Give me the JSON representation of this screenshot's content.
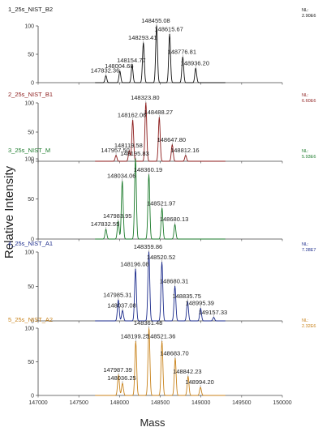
{
  "figure": {
    "ylabel": "Relative Intensity",
    "xlabel": "Mass"
  },
  "chart_data": {
    "type": "line",
    "xlim": [
      147000,
      150000
    ],
    "x_ticks": [
      "147000",
      "147500",
      "148000",
      "148500",
      "149000",
      "149500",
      "150000"
    ],
    "x_tick_values": [
      147000,
      147500,
      148000,
      148500,
      149000,
      149500,
      150000
    ],
    "ylim": [
      0,
      100
    ],
    "y_ticks": [
      "0",
      "50",
      "100"
    ],
    "y_tick_values": [
      0,
      50,
      100
    ],
    "grid": false,
    "panels": [
      {
        "name": "1_25s_NIST_B2",
        "nl": "NL:",
        "nl_value": "2.90E6",
        "color": "#111111",
        "peaks": [
          {
            "x": 147832.36,
            "y": 12,
            "label": "147832.36"
          },
          {
            "x": 148004.68,
            "y": 20,
            "label": "148004.68"
          },
          {
            "x": 148154.77,
            "y": 30,
            "label": "148154.77"
          },
          {
            "x": 148293.41,
            "y": 70,
            "label": "148293.41"
          },
          {
            "x": 148455.08,
            "y": 100,
            "label": "148455.08"
          },
          {
            "x": 148615.67,
            "y": 85,
            "label": "148615.67"
          },
          {
            "x": 148776.81,
            "y": 45,
            "label": "148776.81"
          },
          {
            "x": 148936.2,
            "y": 25,
            "label": "148936.20"
          }
        ]
      },
      {
        "name": "2_25s_NIST_B1",
        "nl": "NL:",
        "nl_value": "6.60E6",
        "color": "#8b1a1a",
        "peaks": [
          {
            "x": 147957.5,
            "y": 10,
            "label": "147957.50"
          },
          {
            "x": 148119.58,
            "y": 18,
            "label": "148119.58"
          },
          {
            "x": 148162.06,
            "y": 70,
            "label": "148162.06"
          },
          {
            "x": 148323.8,
            "y": 100,
            "label": "148323.80"
          },
          {
            "x": 148488.27,
            "y": 75,
            "label": "148488.27"
          },
          {
            "x": 148647.8,
            "y": 28,
            "label": "148647.80"
          },
          {
            "x": 148812.16,
            "y": 10,
            "label": "148812.16"
          }
        ]
      },
      {
        "name": "3_25s_NIST_M",
        "nl": "NL:",
        "nl_value": "5.93E6",
        "color": "#1a7a2a",
        "peaks": [
          {
            "x": 147832.55,
            "y": 12,
            "label": "147832.55"
          },
          {
            "x": 147983.95,
            "y": 22,
            "label": "147983.95"
          },
          {
            "x": 148034.06,
            "y": 72,
            "label": "148034.06"
          },
          {
            "x": 148195.83,
            "y": 100,
            "label": "148195.83"
          },
          {
            "x": 148360.19,
            "y": 80,
            "label": "148360.19"
          },
          {
            "x": 148521.97,
            "y": 38,
            "label": "148521.97"
          },
          {
            "x": 148680.13,
            "y": 18,
            "label": "148680.13"
          }
        ]
      },
      {
        "name": "4_25s_NIST_A1",
        "nl": "NL:",
        "nl_value": "7.28E7",
        "color": "#1a2a8b",
        "peaks": [
          {
            "x": 147985.31,
            "y": 30,
            "label": "147985.31"
          },
          {
            "x": 148037.08,
            "y": 15,
            "label": "148037.08"
          },
          {
            "x": 148196.08,
            "y": 75,
            "label": "148196.08"
          },
          {
            "x": 148359.86,
            "y": 100,
            "label": "148359.86"
          },
          {
            "x": 148520.52,
            "y": 85,
            "label": "148520.52"
          },
          {
            "x": 148680.31,
            "y": 50,
            "label": "148680.31"
          },
          {
            "x": 148835.75,
            "y": 28,
            "label": "148835.75"
          },
          {
            "x": 148995.39,
            "y": 18,
            "label": "148995.39"
          },
          {
            "x": 149157.33,
            "y": 5,
            "label": "149157.33"
          }
        ]
      },
      {
        "name": "5_25s_NIST_A2",
        "nl": "NL:",
        "nl_value": "2.32E6",
        "color": "#c8821a",
        "peaks": [
          {
            "x": 147987.39,
            "y": 30,
            "label": "147987.39"
          },
          {
            "x": 148036.25,
            "y": 18,
            "label": "148036.25"
          },
          {
            "x": 148199.25,
            "y": 80,
            "label": "148199.25"
          },
          {
            "x": 148361.48,
            "y": 100,
            "label": "148361.48"
          },
          {
            "x": 148521.36,
            "y": 80,
            "label": "148521.36"
          },
          {
            "x": 148683.7,
            "y": 55,
            "label": "148683.70"
          },
          {
            "x": 148842.23,
            "y": 28,
            "label": "148842.23"
          },
          {
            "x": 148994.2,
            "y": 12,
            "label": "148994.20"
          }
        ]
      }
    ]
  }
}
